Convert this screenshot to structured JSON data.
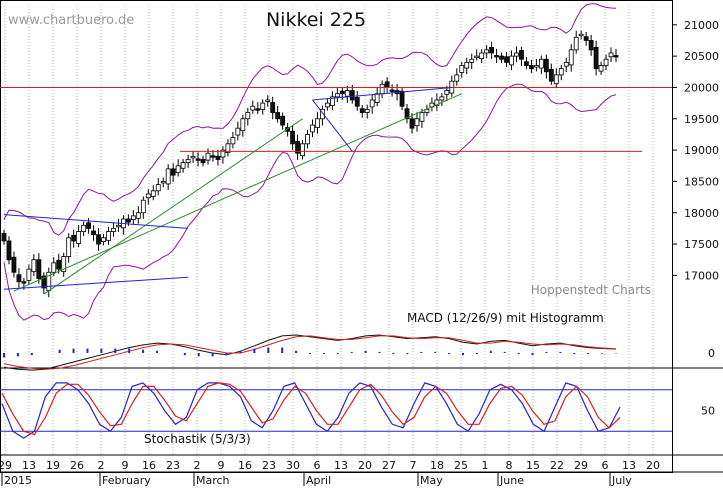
{
  "watermark": "www.chartbuero.de",
  "credit": "Hoppenstedt Charts",
  "chart_data": {
    "type": "candlestick",
    "title": "Nikkei 225",
    "price_axis": {
      "ylim": [
        16400,
        21300
      ],
      "ticks": [
        "17000",
        "17500",
        "18000",
        "18500",
        "19000",
        "19500",
        "20000",
        "20500",
        "21000"
      ],
      "tick_values": [
        17000,
        17500,
        18000,
        18500,
        19000,
        19500,
        20000,
        20500,
        21000
      ],
      "side": "right",
      "grid": "vertical dotted"
    },
    "horizontal_lines": [
      {
        "value": 20000,
        "color": "#d62020"
      },
      {
        "value": 18980,
        "color": "#d62020"
      }
    ],
    "trend_lines": [
      {
        "color": "#2c8a2c",
        "from": {
          "i": 2,
          "v": 16750
        },
        "to": {
          "i": 92,
          "v": 19900
        }
      },
      {
        "color": "#2c8a2c",
        "from": {
          "i": 8,
          "v": 16700
        },
        "to": {
          "i": 60,
          "v": 19500
        }
      },
      {
        "color": "#2424c8",
        "from": {
          "i": 0,
          "v": 17970
        },
        "to": {
          "i": 37,
          "v": 17750
        }
      },
      {
        "color": "#2424c8",
        "from": {
          "i": 0,
          "v": 16780
        },
        "to": {
          "i": 37,
          "v": 16970
        }
      },
      {
        "color": "#2424c8",
        "from": {
          "i": 70,
          "v": 18980
        },
        "to": {
          "i": 62,
          "v": 19800
        }
      },
      {
        "color": "#2424c8",
        "from": {
          "i": 62,
          "v": 19800
        },
        "to": {
          "i": 90,
          "v": 20000
        }
      }
    ],
    "closes": [
      17550,
      17250,
      17050,
      16900,
      16880,
      17100,
      17250,
      16950,
      16800,
      17050,
      17200,
      17100,
      17300,
      17600,
      17550,
      17700,
      17800,
      17750,
      17650,
      17500,
      17600,
      17700,
      17750,
      17800,
      17900,
      17850,
      17950,
      18000,
      18200,
      18300,
      18350,
      18450,
      18500,
      18700,
      18600,
      18750,
      18800,
      18850,
      18900,
      18850,
      18800,
      18950,
      18900,
      18850,
      19000,
      19100,
      19200,
      19350,
      19500,
      19600,
      19700,
      19650,
      19750,
      19800,
      19600,
      19500,
      19400,
      19300,
      19100,
      18950,
      19100,
      19250,
      19400,
      19500,
      19650,
      19750,
      19850,
      19900,
      19900,
      19950,
      19800,
      19700,
      19600,
      19650,
      19800,
      19900,
      20050,
      20000,
      19950,
      19900,
      19700,
      19500,
      19350,
      19500,
      19600,
      19650,
      19750,
      19800,
      19850,
      19950,
      20100,
      20200,
      20350,
      20400,
      20450,
      20500,
      20550,
      20600,
      20550,
      20500,
      20450,
      20400,
      20500,
      20550,
      20450,
      20350,
      20300,
      20350,
      20450,
      20250,
      20100,
      20200,
      20300,
      20400,
      20600,
      20800,
      20850,
      20750,
      20600,
      20300,
      20350,
      20450,
      20550,
      20500
    ],
    "macd_panel": {
      "title": "MACD (12/26/9) mit Histogramm",
      "zero_label": "0",
      "series": [
        {
          "name": "MACD",
          "color": "#111111",
          "values": [
            -0.8,
            -0.9,
            -0.95,
            -0.9,
            -0.7,
            -0.5,
            -0.3,
            -0.1,
            0.1,
            0.3,
            0.45,
            0.55,
            0.5,
            0.35,
            0.15,
            0.0,
            -0.1,
            0.1,
            0.4,
            0.7,
            0.95,
            1.0,
            0.9,
            0.8,
            0.7,
            0.8,
            0.95,
            1.0,
            0.9,
            0.8,
            0.85,
            0.9,
            0.8,
            0.6,
            0.5,
            0.65,
            0.7,
            0.55,
            0.4,
            0.5,
            0.55,
            0.4,
            0.3,
            0.25,
            0.22
          ]
        },
        {
          "name": "Signal",
          "color": "#d62020",
          "values": [
            -0.6,
            -0.75,
            -0.85,
            -0.9,
            -0.85,
            -0.7,
            -0.5,
            -0.3,
            -0.1,
            0.1,
            0.3,
            0.45,
            0.5,
            0.45,
            0.3,
            0.15,
            0.0,
            0.0,
            0.2,
            0.45,
            0.7,
            0.9,
            0.95,
            0.85,
            0.75,
            0.75,
            0.85,
            0.95,
            0.95,
            0.85,
            0.8,
            0.85,
            0.85,
            0.7,
            0.55,
            0.55,
            0.65,
            0.6,
            0.5,
            0.45,
            0.5,
            0.45,
            0.35,
            0.28,
            0.24
          ]
        },
        {
          "name": "Histogram",
          "color": "#2424c8",
          "values": [
            -0.2,
            -0.15,
            -0.1,
            0.0,
            0.15,
            0.2,
            0.2,
            0.2,
            0.2,
            0.2,
            0.15,
            0.1,
            0.0,
            -0.1,
            -0.15,
            -0.15,
            -0.1,
            0.1,
            0.2,
            0.25,
            0.25,
            0.1,
            -0.05,
            -0.05,
            -0.05,
            0.05,
            0.1,
            0.05,
            -0.05,
            -0.05,
            0.05,
            0.05,
            -0.05,
            -0.1,
            -0.05,
            0.1,
            0.05,
            -0.05,
            -0.1,
            0.05,
            0.05,
            -0.05,
            -0.05,
            -0.03,
            -0.02
          ]
        }
      ]
    },
    "stochastic_panel": {
      "title": "Stochastik (5/3/3)",
      "tick_label": "50",
      "bands": [
        80,
        20
      ],
      "ylim": [
        0,
        100
      ],
      "series": [
        {
          "name": "%K",
          "color": "#2424c8",
          "values": [
            60,
            20,
            10,
            20,
            70,
            90,
            90,
            80,
            60,
            30,
            20,
            40,
            85,
            90,
            75,
            50,
            30,
            40,
            80,
            90,
            90,
            85,
            70,
            35,
            25,
            50,
            85,
            90,
            60,
            30,
            20,
            40,
            75,
            90,
            85,
            55,
            30,
            25,
            60,
            90,
            85,
            60,
            30,
            20,
            45,
            80,
            88,
            80,
            60,
            30,
            20,
            55,
            90,
            85,
            50,
            20,
            25,
            55
          ]
        },
        {
          "name": "%D",
          "color": "#d62020",
          "values": [
            75,
            45,
            20,
            15,
            40,
            75,
            88,
            88,
            72,
            48,
            28,
            30,
            60,
            85,
            85,
            65,
            42,
            35,
            60,
            85,
            90,
            88,
            78,
            55,
            32,
            38,
            65,
            85,
            75,
            50,
            30,
            30,
            55,
            80,
            88,
            72,
            48,
            30,
            40,
            70,
            85,
            75,
            50,
            30,
            30,
            60,
            82,
            85,
            72,
            48,
            30,
            35,
            70,
            85,
            70,
            40,
            25,
            40
          ]
        }
      ]
    },
    "x_axis": {
      "ticks": [
        "29",
        "13",
        "19",
        "26",
        "2",
        "9",
        "16",
        "23",
        "2",
        "9",
        "16",
        "23",
        "30",
        "6",
        "13",
        "20",
        "27",
        "7",
        "18",
        "25",
        "1",
        "8",
        "15",
        "22",
        "29",
        "6",
        "13",
        "20"
      ],
      "months": [
        "2015",
        "February",
        "March",
        "April",
        "May",
        "June",
        "July"
      ]
    }
  }
}
